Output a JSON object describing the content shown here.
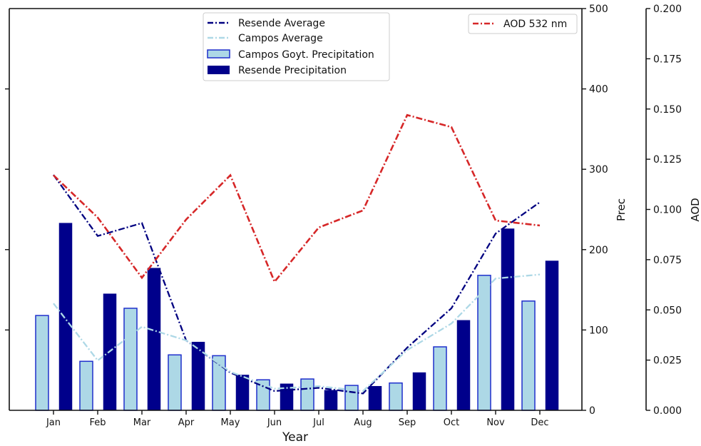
{
  "chart_data": {
    "type": "bar",
    "title": "",
    "xlabel": "Year",
    "categories": [
      "Jan",
      "Feb",
      "Mar",
      "Apr",
      "May",
      "Jun",
      "Jul",
      "Aug",
      "Sep",
      "Oct",
      "Nov",
      "Dec"
    ],
    "left_axis": {
      "ylim": [
        0,
        500
      ],
      "ticks": [
        100,
        200,
        300,
        400
      ],
      "tick_labels_visible": false
    },
    "prec_axis": {
      "label": "Prec",
      "ylim": [
        0,
        500
      ],
      "ticks": [
        0,
        100,
        200,
        300,
        400,
        500
      ],
      "tick_labels": [
        "0",
        "100",
        "200",
        "300",
        "400",
        "500"
      ]
    },
    "aod_axis": {
      "label": "AOD",
      "ylim": [
        0,
        0.2
      ],
      "ticks": [
        0,
        0.025,
        0.05,
        0.075,
        0.1,
        0.125,
        0.15,
        0.175,
        0.2
      ],
      "tick_labels": [
        "0.000",
        "0.025",
        "0.050",
        "0.075",
        "0.100",
        "0.125",
        "0.150",
        "0.175",
        "0.200"
      ]
    },
    "series": [
      {
        "name": "Campos Goyt. Precipitation",
        "kind": "bar",
        "axis": "prec",
        "color": "#add8e6",
        "edge": "#1f2fcc",
        "values": [
          118,
          61,
          127,
          69,
          68,
          38,
          39,
          31,
          34,
          79,
          168,
          136
        ]
      },
      {
        "name": "Resende Precipitation",
        "kind": "bar",
        "axis": "prec",
        "color": "#00008b",
        "edge": "#00008b",
        "values": [
          233,
          145,
          177,
          85,
          44,
          33,
          25,
          30,
          47,
          112,
          226,
          186
        ]
      },
      {
        "name": "Resende Average",
        "kind": "line",
        "axis": "prec",
        "color": "#000080",
        "dash": "dashdot",
        "values": [
          293,
          217,
          233,
          87,
          47,
          24,
          28,
          21,
          78,
          127,
          220,
          259
        ]
      },
      {
        "name": "Campos Average",
        "kind": "line",
        "axis": "prec",
        "color": "#add8e6",
        "dash": "dashdot",
        "values": [
          133,
          62,
          104,
          87,
          48,
          27,
          30,
          24,
          75,
          108,
          164,
          169
        ]
      },
      {
        "name": "AOD 532 nm",
        "kind": "line",
        "axis": "aod",
        "color": "#d62728",
        "dash": "dashdot",
        "values": [
          0.117,
          0.096,
          0.066,
          0.095,
          0.117,
          0.064,
          0.091,
          0.0995,
          0.147,
          0.141,
          0.0945,
          0.092
        ]
      }
    ],
    "legends": [
      {
        "placement": "top-center",
        "entries": [
          "Resende Average",
          "Campos Average",
          "Campos Goyt. Precipitation",
          "Resende Precipitation"
        ]
      },
      {
        "placement": "top-right",
        "entries": [
          "AOD 532 nm"
        ]
      }
    ],
    "grid": false
  }
}
